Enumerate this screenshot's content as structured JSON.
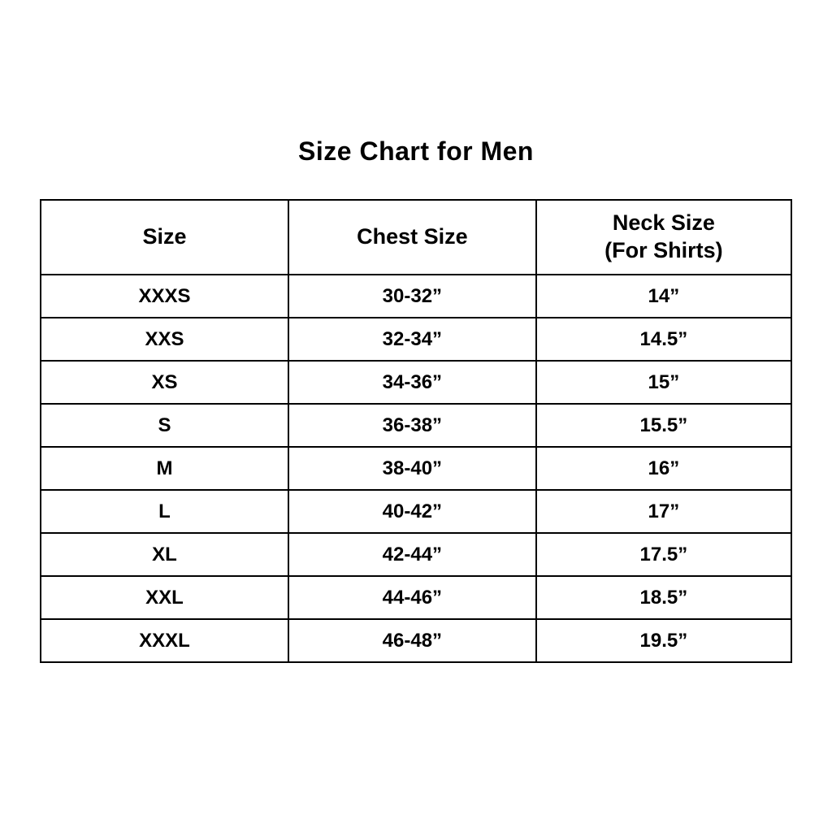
{
  "page": {
    "title": "Size Chart for Men"
  },
  "table": {
    "headers": [
      "Size",
      "Chest Size",
      "Neck Size\n(For Shirts)"
    ],
    "rows": [
      {
        "size": "XXXS",
        "chest": "30-32”",
        "neck": "14”"
      },
      {
        "size": "XXS",
        "chest": "32-34”",
        "neck": "14.5”"
      },
      {
        "size": "XS",
        "chest": "34-36”",
        "neck": "15”"
      },
      {
        "size": "S",
        "chest": "36-38”",
        "neck": "15.5”"
      },
      {
        "size": "M",
        "chest": "38-40”",
        "neck": "16”"
      },
      {
        "size": "L",
        "chest": "40-42”",
        "neck": "17”"
      },
      {
        "size": "XL",
        "chest": "42-44”",
        "neck": "17.5”"
      },
      {
        "size": "XXL",
        "chest": "44-46”",
        "neck": "18.5”"
      },
      {
        "size": "XXXL",
        "chest": "46-48”",
        "neck": "19.5”"
      }
    ]
  },
  "chart_data": {
    "type": "table",
    "title": "Size Chart for Men",
    "columns": [
      "Size",
      "Chest Size",
      "Neck Size (For Shirts)"
    ],
    "rows": [
      [
        "XXXS",
        "30-32”",
        "14”"
      ],
      [
        "XXS",
        "32-34”",
        "14.5”"
      ],
      [
        "XS",
        "34-36”",
        "15”"
      ],
      [
        "S",
        "36-38”",
        "15.5”"
      ],
      [
        "M",
        "38-40”",
        "16”"
      ],
      [
        "L",
        "40-42”",
        "17”"
      ],
      [
        "XL",
        "42-44”",
        "17.5”"
      ],
      [
        "XXL",
        "44-46”",
        "18.5”"
      ],
      [
        "XXXL",
        "46-48”",
        "19.5”"
      ]
    ],
    "layout": {
      "grid": true,
      "text_align": "center",
      "header_row": true
    }
  }
}
